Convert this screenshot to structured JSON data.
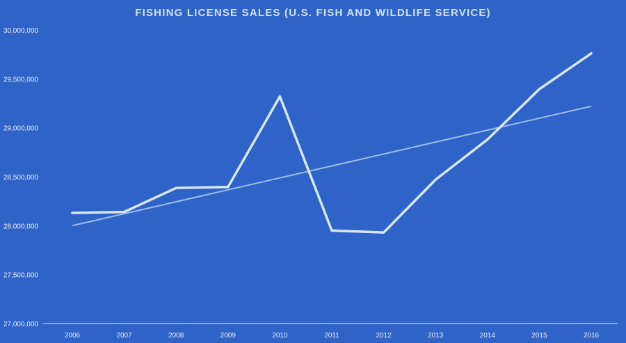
{
  "colors": {
    "background": "#2f63c7",
    "title": "#cfe2ff",
    "text": "#e8f0ff",
    "line": "#d6e8ff",
    "trend": "#9dbcf0",
    "axis": "#e3ecff"
  },
  "chart_data": {
    "type": "line",
    "title": "FISHING LICENSE SALES (U.S. FISH AND WILDLIFE SERVICE)",
    "xlabel": "",
    "ylabel": "",
    "categories": [
      "2006",
      "2007",
      "2008",
      "2009",
      "2010",
      "2011",
      "2012",
      "2013",
      "2014",
      "2015",
      "2016"
    ],
    "series": [
      {
        "values": [
          28130000,
          28140000,
          28385000,
          28395000,
          29320000,
          27950000,
          27930000,
          28470000,
          28880000,
          29395000,
          29760000
        ]
      }
    ],
    "trendline": {
      "type": "linear",
      "start": 28000000,
      "end": 29220000
    },
    "ylim": [
      27000000,
      30000000
    ],
    "yticks": [
      27000000,
      27500000,
      28000000,
      28500000,
      29000000,
      29500000,
      30000000
    ],
    "ytick_labels": [
      "27,000,000",
      "27,500,000",
      "28,000,000",
      "28,500,000",
      "29,000,000",
      "29,500,000",
      "30,000,000"
    ],
    "drop_lines": true,
    "grid": false,
    "legend": "none"
  }
}
